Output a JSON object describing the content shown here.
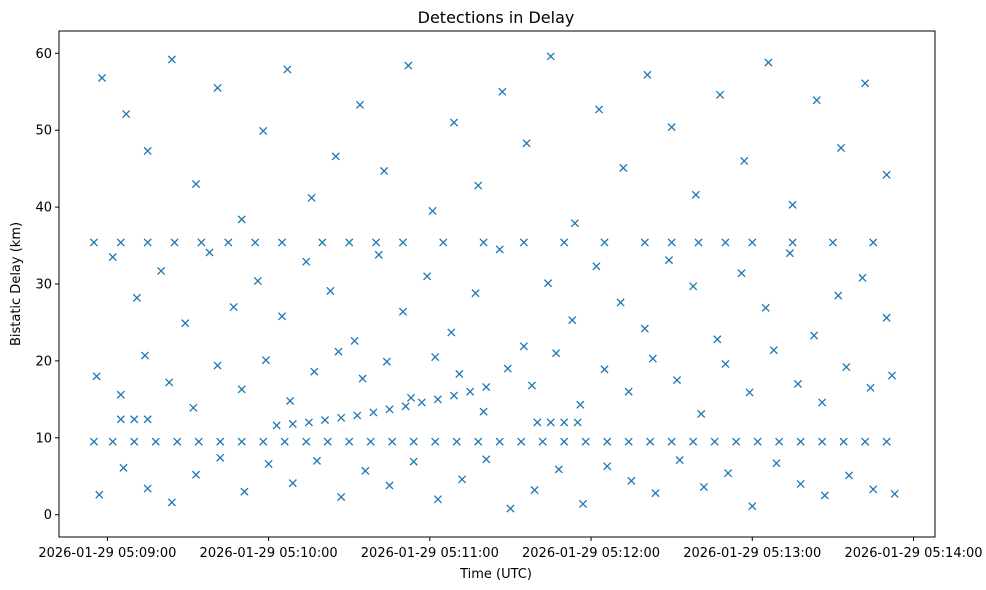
{
  "chart_data": {
    "type": "scatter",
    "title": "Detections in Delay",
    "xlabel": "Time (UTC)",
    "ylabel": "Bistatic Delay (km)",
    "x_type": "time",
    "xlim": [
      "2026-01-29 05:08:42",
      "2026-01-29 05:14:08"
    ],
    "ylim": [
      -2.9,
      62.9
    ],
    "x_ticks": [
      "2026-01-29 05:09:00",
      "2026-01-29 05:10:00",
      "2026-01-29 05:11:00",
      "2026-01-29 05:12:00",
      "2026-01-29 05:13:00",
      "2026-01-29 05:14:00"
    ],
    "y_ticks": [
      0,
      10,
      20,
      30,
      40,
      50,
      60
    ],
    "marker": "x",
    "color": "#1f77b4",
    "grid": false,
    "series": [
      {
        "points": [
          [
            "2026-01-29 05:08:55",
            9.5
          ],
          [
            "2026-01-29 05:09:02",
            9.5
          ],
          [
            "2026-01-29 05:09:10",
            9.5
          ],
          [
            "2026-01-29 05:09:18",
            9.5
          ],
          [
            "2026-01-29 05:09:26",
            9.5
          ],
          [
            "2026-01-29 05:09:34",
            9.5
          ],
          [
            "2026-01-29 05:09:42",
            9.5
          ],
          [
            "2026-01-29 05:09:50",
            9.5
          ],
          [
            "2026-01-29 05:09:58",
            9.5
          ],
          [
            "2026-01-29 05:10:06",
            9.5
          ],
          [
            "2026-01-29 05:10:14",
            9.5
          ],
          [
            "2026-01-29 05:10:22",
            9.5
          ],
          [
            "2026-01-29 05:10:30",
            9.5
          ],
          [
            "2026-01-29 05:10:38",
            9.5
          ],
          [
            "2026-01-29 05:10:46",
            9.5
          ],
          [
            "2026-01-29 05:10:54",
            9.5
          ],
          [
            "2026-01-29 05:11:02",
            9.5
          ],
          [
            "2026-01-29 05:11:10",
            9.5
          ],
          [
            "2026-01-29 05:11:18",
            9.5
          ],
          [
            "2026-01-29 05:11:26",
            9.5
          ],
          [
            "2026-01-29 05:11:34",
            9.5
          ],
          [
            "2026-01-29 05:11:42",
            9.5
          ],
          [
            "2026-01-29 05:11:50",
            9.5
          ],
          [
            "2026-01-29 05:11:58",
            9.5
          ],
          [
            "2026-01-29 05:12:06",
            9.5
          ],
          [
            "2026-01-29 05:12:14",
            9.5
          ],
          [
            "2026-01-29 05:12:22",
            9.5
          ],
          [
            "2026-01-29 05:12:30",
            9.5
          ],
          [
            "2026-01-29 05:12:38",
            9.5
          ],
          [
            "2026-01-29 05:12:46",
            9.5
          ],
          [
            "2026-01-29 05:12:54",
            9.5
          ],
          [
            "2026-01-29 05:13:02",
            9.5
          ],
          [
            "2026-01-29 05:13:10",
            9.5
          ],
          [
            "2026-01-29 05:13:18",
            9.5
          ],
          [
            "2026-01-29 05:13:26",
            9.5
          ],
          [
            "2026-01-29 05:13:34",
            9.5
          ],
          [
            "2026-01-29 05:13:42",
            9.5
          ],
          [
            "2026-01-29 05:13:50",
            9.5
          ],
          [
            "2026-01-29 05:08:55",
            35.4
          ],
          [
            "2026-01-29 05:09:05",
            35.4
          ],
          [
            "2026-01-29 05:09:15",
            35.4
          ],
          [
            "2026-01-29 05:09:25",
            35.4
          ],
          [
            "2026-01-29 05:09:35",
            35.4
          ],
          [
            "2026-01-29 05:09:45",
            35.4
          ],
          [
            "2026-01-29 05:09:55",
            35.4
          ],
          [
            "2026-01-29 05:10:05",
            35.4
          ],
          [
            "2026-01-29 05:10:20",
            35.4
          ],
          [
            "2026-01-29 05:10:30",
            35.4
          ],
          [
            "2026-01-29 05:10:40",
            35.4
          ],
          [
            "2026-01-29 05:10:50",
            35.4
          ],
          [
            "2026-01-29 05:11:05",
            35.4
          ],
          [
            "2026-01-29 05:11:20",
            35.4
          ],
          [
            "2026-01-29 05:11:35",
            35.4
          ],
          [
            "2026-01-29 05:11:50",
            35.4
          ],
          [
            "2026-01-29 05:12:05",
            35.4
          ],
          [
            "2026-01-29 05:12:20",
            35.4
          ],
          [
            "2026-01-29 05:12:30",
            35.4
          ],
          [
            "2026-01-29 05:12:40",
            35.4
          ],
          [
            "2026-01-29 05:12:50",
            35.4
          ],
          [
            "2026-01-29 05:13:00",
            35.4
          ],
          [
            "2026-01-29 05:13:15",
            35.4
          ],
          [
            "2026-01-29 05:13:30",
            35.4
          ],
          [
            "2026-01-29 05:13:45",
            35.4
          ],
          [
            "2026-01-29 05:10:03",
            11.6
          ],
          [
            "2026-01-29 05:10:09",
            11.8
          ],
          [
            "2026-01-29 05:10:15",
            12.0
          ],
          [
            "2026-01-29 05:10:21",
            12.3
          ],
          [
            "2026-01-29 05:10:27",
            12.6
          ],
          [
            "2026-01-29 05:10:33",
            12.9
          ],
          [
            "2026-01-29 05:10:39",
            13.3
          ],
          [
            "2026-01-29 05:10:45",
            13.7
          ],
          [
            "2026-01-29 05:10:51",
            14.1
          ],
          [
            "2026-01-29 05:10:57",
            14.6
          ],
          [
            "2026-01-29 05:11:03",
            15.0
          ],
          [
            "2026-01-29 05:11:09",
            15.5
          ],
          [
            "2026-01-29 05:11:15",
            16.0
          ],
          [
            "2026-01-29 05:11:21",
            16.6
          ],
          [
            "2026-01-29 05:09:05",
            12.4
          ],
          [
            "2026-01-29 05:09:10",
            12.4
          ],
          [
            "2026-01-29 05:09:15",
            12.4
          ],
          [
            "2026-01-29 05:11:40",
            12.0
          ],
          [
            "2026-01-29 05:11:45",
            12.0
          ],
          [
            "2026-01-29 05:11:50",
            12.0
          ],
          [
            "2026-01-29 05:11:55",
            12.0
          ],
          [
            "2026-01-29 05:08:58",
            56.8
          ],
          [
            "2026-01-29 05:09:07",
            52.1
          ],
          [
            "2026-01-29 05:09:15",
            47.3
          ],
          [
            "2026-01-29 05:09:24",
            59.2
          ],
          [
            "2026-01-29 05:09:33",
            43.0
          ],
          [
            "2026-01-29 05:09:41",
            55.5
          ],
          [
            "2026-01-29 05:09:50",
            38.4
          ],
          [
            "2026-01-29 05:09:58",
            49.9
          ],
          [
            "2026-01-29 05:10:07",
            57.9
          ],
          [
            "2026-01-29 05:10:16",
            41.2
          ],
          [
            "2026-01-29 05:10:25",
            46.6
          ],
          [
            "2026-01-29 05:10:34",
            53.3
          ],
          [
            "2026-01-29 05:10:43",
            44.7
          ],
          [
            "2026-01-29 05:10:52",
            58.4
          ],
          [
            "2026-01-29 05:11:01",
            39.5
          ],
          [
            "2026-01-29 05:11:09",
            51.0
          ],
          [
            "2026-01-29 05:11:18",
            42.8
          ],
          [
            "2026-01-29 05:11:27",
            55.0
          ],
          [
            "2026-01-29 05:11:36",
            48.3
          ],
          [
            "2026-01-29 05:11:45",
            59.6
          ],
          [
            "2026-01-29 05:11:54",
            37.9
          ],
          [
            "2026-01-29 05:12:03",
            52.7
          ],
          [
            "2026-01-29 05:12:12",
            45.1
          ],
          [
            "2026-01-29 05:12:21",
            57.2
          ],
          [
            "2026-01-29 05:12:30",
            50.4
          ],
          [
            "2026-01-29 05:12:39",
            41.6
          ],
          [
            "2026-01-29 05:12:48",
            54.6
          ],
          [
            "2026-01-29 05:12:57",
            46.0
          ],
          [
            "2026-01-29 05:13:06",
            58.8
          ],
          [
            "2026-01-29 05:13:15",
            40.3
          ],
          [
            "2026-01-29 05:13:24",
            53.9
          ],
          [
            "2026-01-29 05:13:33",
            47.7
          ],
          [
            "2026-01-29 05:13:42",
            56.1
          ],
          [
            "2026-01-29 05:13:50",
            44.2
          ],
          [
            "2026-01-29 05:09:02",
            33.5
          ],
          [
            "2026-01-29 05:09:11",
            28.2
          ],
          [
            "2026-01-29 05:09:20",
            31.7
          ],
          [
            "2026-01-29 05:09:29",
            24.9
          ],
          [
            "2026-01-29 05:09:38",
            34.1
          ],
          [
            "2026-01-29 05:09:47",
            27.0
          ],
          [
            "2026-01-29 05:09:56",
            30.4
          ],
          [
            "2026-01-29 05:10:05",
            25.8
          ],
          [
            "2026-01-29 05:10:14",
            32.9
          ],
          [
            "2026-01-29 05:10:23",
            29.1
          ],
          [
            "2026-01-29 05:10:32",
            22.6
          ],
          [
            "2026-01-29 05:10:41",
            33.8
          ],
          [
            "2026-01-29 05:10:50",
            26.4
          ],
          [
            "2026-01-29 05:10:59",
            31.0
          ],
          [
            "2026-01-29 05:11:08",
            23.7
          ],
          [
            "2026-01-29 05:11:17",
            28.8
          ],
          [
            "2026-01-29 05:11:26",
            34.5
          ],
          [
            "2026-01-29 05:11:35",
            21.9
          ],
          [
            "2026-01-29 05:11:44",
            30.1
          ],
          [
            "2026-01-29 05:11:53",
            25.3
          ],
          [
            "2026-01-29 05:12:02",
            32.3
          ],
          [
            "2026-01-29 05:12:11",
            27.6
          ],
          [
            "2026-01-29 05:12:20",
            24.2
          ],
          [
            "2026-01-29 05:12:29",
            33.1
          ],
          [
            "2026-01-29 05:12:38",
            29.7
          ],
          [
            "2026-01-29 05:12:47",
            22.8
          ],
          [
            "2026-01-29 05:12:56",
            31.4
          ],
          [
            "2026-01-29 05:13:05",
            26.9
          ],
          [
            "2026-01-29 05:13:14",
            34.0
          ],
          [
            "2026-01-29 05:13:23",
            23.3
          ],
          [
            "2026-01-29 05:13:32",
            28.5
          ],
          [
            "2026-01-29 05:13:41",
            30.8
          ],
          [
            "2026-01-29 05:13:50",
            25.6
          ],
          [
            "2026-01-29 05:08:56",
            18.0
          ],
          [
            "2026-01-29 05:09:05",
            15.6
          ],
          [
            "2026-01-29 05:09:14",
            20.7
          ],
          [
            "2026-01-29 05:09:23",
            17.2
          ],
          [
            "2026-01-29 05:09:32",
            13.9
          ],
          [
            "2026-01-29 05:09:41",
            19.4
          ],
          [
            "2026-01-29 05:09:50",
            16.3
          ],
          [
            "2026-01-29 05:09:59",
            20.1
          ],
          [
            "2026-01-29 05:10:08",
            14.8
          ],
          [
            "2026-01-29 05:10:17",
            18.6
          ],
          [
            "2026-01-29 05:10:26",
            21.2
          ],
          [
            "2026-01-29 05:10:35",
            17.7
          ],
          [
            "2026-01-29 05:10:44",
            19.9
          ],
          [
            "2026-01-29 05:10:53",
            15.2
          ],
          [
            "2026-01-29 05:11:02",
            20.5
          ],
          [
            "2026-01-29 05:11:11",
            18.3
          ],
          [
            "2026-01-29 05:11:20",
            13.4
          ],
          [
            "2026-01-29 05:11:29",
            19.0
          ],
          [
            "2026-01-29 05:11:38",
            16.8
          ],
          [
            "2026-01-29 05:11:47",
            21.0
          ],
          [
            "2026-01-29 05:11:56",
            14.3
          ],
          [
            "2026-01-29 05:12:05",
            18.9
          ],
          [
            "2026-01-29 05:12:14",
            16.0
          ],
          [
            "2026-01-29 05:12:23",
            20.3
          ],
          [
            "2026-01-29 05:12:32",
            17.5
          ],
          [
            "2026-01-29 05:12:41",
            13.1
          ],
          [
            "2026-01-29 05:12:50",
            19.6
          ],
          [
            "2026-01-29 05:12:59",
            15.9
          ],
          [
            "2026-01-29 05:13:08",
            21.4
          ],
          [
            "2026-01-29 05:13:17",
            17.0
          ],
          [
            "2026-01-29 05:13:26",
            14.6
          ],
          [
            "2026-01-29 05:13:35",
            19.2
          ],
          [
            "2026-01-29 05:13:44",
            16.5
          ],
          [
            "2026-01-29 05:13:52",
            18.1
          ],
          [
            "2026-01-29 05:08:57",
            2.6
          ],
          [
            "2026-01-29 05:09:06",
            6.1
          ],
          [
            "2026-01-29 05:09:15",
            3.4
          ],
          [
            "2026-01-29 05:09:24",
            1.6
          ],
          [
            "2026-01-29 05:09:33",
            5.2
          ],
          [
            "2026-01-29 05:09:42",
            7.4
          ],
          [
            "2026-01-29 05:09:51",
            3.0
          ],
          [
            "2026-01-29 05:10:00",
            6.6
          ],
          [
            "2026-01-29 05:10:09",
            4.1
          ],
          [
            "2026-01-29 05:10:18",
            7.0
          ],
          [
            "2026-01-29 05:10:27",
            2.3
          ],
          [
            "2026-01-29 05:10:36",
            5.7
          ],
          [
            "2026-01-29 05:10:45",
            3.8
          ],
          [
            "2026-01-29 05:10:54",
            6.9
          ],
          [
            "2026-01-29 05:11:03",
            2.0
          ],
          [
            "2026-01-29 05:11:12",
            4.6
          ],
          [
            "2026-01-29 05:11:21",
            7.2
          ],
          [
            "2026-01-29 05:11:30",
            0.8
          ],
          [
            "2026-01-29 05:11:39",
            3.2
          ],
          [
            "2026-01-29 05:11:48",
            5.9
          ],
          [
            "2026-01-29 05:11:57",
            1.4
          ],
          [
            "2026-01-29 05:12:06",
            6.3
          ],
          [
            "2026-01-29 05:12:15",
            4.4
          ],
          [
            "2026-01-29 05:12:24",
            2.8
          ],
          [
            "2026-01-29 05:12:33",
            7.1
          ],
          [
            "2026-01-29 05:12:42",
            3.6
          ],
          [
            "2026-01-29 05:12:51",
            5.4
          ],
          [
            "2026-01-29 05:13:00",
            1.1
          ],
          [
            "2026-01-29 05:13:09",
            6.7
          ],
          [
            "2026-01-29 05:13:18",
            4.0
          ],
          [
            "2026-01-29 05:13:27",
            2.5
          ],
          [
            "2026-01-29 05:13:36",
            5.1
          ],
          [
            "2026-01-29 05:13:45",
            3.3
          ],
          [
            "2026-01-29 05:13:53",
            2.7
          ]
        ]
      }
    ]
  }
}
